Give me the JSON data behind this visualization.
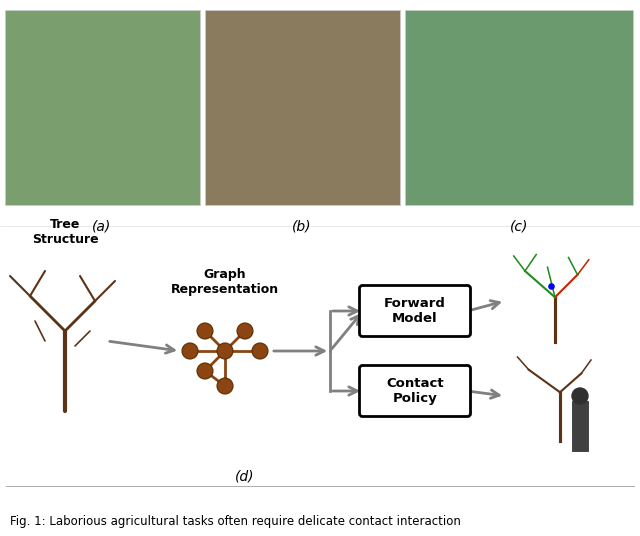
{
  "title": "Fig. 1: Laborious agricultural tasks often require delicate contact interaction",
  "background_color": "#ffffff",
  "top_labels": [
    "(a)",
    "(b)",
    "(c)"
  ],
  "bottom_label": "(d)",
  "box_labels": [
    "Forward\nModel",
    "Contact\nPolicy"
  ],
  "text_tree_structure": "Tree\nStructure",
  "text_graph_rep": "Graph\nRepresentation",
  "arrow_color": "#808080",
  "box_edge_color": "#000000",
  "box_face_color": "#ffffff",
  "node_color": "#8B4513",
  "node_edge_color": "#5C2E00",
  "branch_color": "#5C3317",
  "graph_line_color": "#8B4513"
}
